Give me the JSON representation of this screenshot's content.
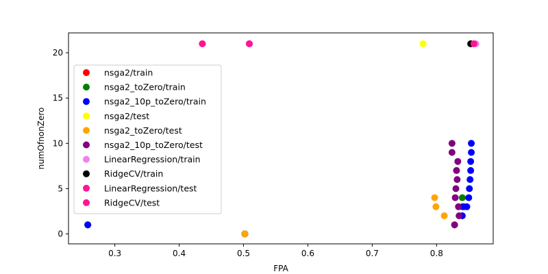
{
  "chart_data": {
    "type": "scatter",
    "title": "",
    "xlabel": "FPA",
    "ylabel": "numOfnonZero",
    "xlim": [
      0.228,
      0.888
    ],
    "ylim": [
      -1.1,
      22.2
    ],
    "xticks": [
      0.3,
      0.4,
      0.5,
      0.6,
      0.7,
      0.8
    ],
    "xtick_labels": [
      "0.3",
      "0.4",
      "0.5",
      "0.6",
      "0.7",
      "0.8"
    ],
    "yticks": [
      0,
      5,
      10,
      15,
      20
    ],
    "ytick_labels": [
      "0",
      "5",
      "10",
      "15",
      "20"
    ],
    "grid": false,
    "legend_position": "center-left",
    "series": [
      {
        "name": "nsga2/train",
        "color": "#ff0000",
        "points": [
          [
            0.258,
            1
          ],
          [
            0.502,
            0
          ]
        ]
      },
      {
        "name": "nsga2_toZero/train",
        "color": "#008000",
        "points": [
          [
            0.258,
            1
          ],
          [
            0.502,
            0
          ],
          [
            0.84,
            4
          ],
          [
            0.84,
            3
          ]
        ]
      },
      {
        "name": "nsga2_10p_toZero/train",
        "color": "#0000ff",
        "points": [
          [
            0.258,
            1
          ],
          [
            0.502,
            0
          ],
          [
            0.828,
            1
          ],
          [
            0.84,
            2
          ],
          [
            0.842,
            3
          ],
          [
            0.847,
            3
          ],
          [
            0.85,
            4
          ],
          [
            0.851,
            5
          ],
          [
            0.852,
            6
          ],
          [
            0.853,
            7
          ],
          [
            0.853,
            8
          ],
          [
            0.854,
            9
          ],
          [
            0.854,
            10
          ]
        ]
      },
      {
        "name": "nsga2/test",
        "color": "#ffff00",
        "points": [
          [
            0.779,
            21
          ]
        ]
      },
      {
        "name": "nsga2_toZero/test",
        "color": "#ffa500",
        "points": [
          [
            0.502,
            0
          ],
          [
            0.797,
            4
          ],
          [
            0.799,
            3
          ],
          [
            0.812,
            2
          ],
          [
            0.828,
            1
          ]
        ]
      },
      {
        "name": "nsga2_10p_toZero/test",
        "color": "#800080",
        "points": [
          [
            0.828,
            1
          ],
          [
            0.829,
            4
          ],
          [
            0.83,
            5
          ],
          [
            0.831,
            7
          ],
          [
            0.832,
            6
          ],
          [
            0.833,
            8
          ],
          [
            0.834,
            3
          ],
          [
            0.835,
            2
          ],
          [
            0.824,
            9
          ],
          [
            0.824,
            10
          ]
        ]
      },
      {
        "name": "LinearRegression/train",
        "color": "#ee82ee",
        "points": [
          [
            0.861,
            21
          ]
        ]
      },
      {
        "name": "RidgeCV/train",
        "color": "#000000",
        "points": [
          [
            0.853,
            21
          ]
        ]
      },
      {
        "name": "LinearRegression/test",
        "color": "#ff1493",
        "points": [
          [
            0.436,
            21
          ],
          [
            0.509,
            21
          ]
        ]
      },
      {
        "name": "RidgeCV/test",
        "color": "#ff1493",
        "points": [
          [
            0.436,
            21
          ],
          [
            0.509,
            21
          ],
          [
            0.858,
            21
          ]
        ]
      }
    ]
  }
}
